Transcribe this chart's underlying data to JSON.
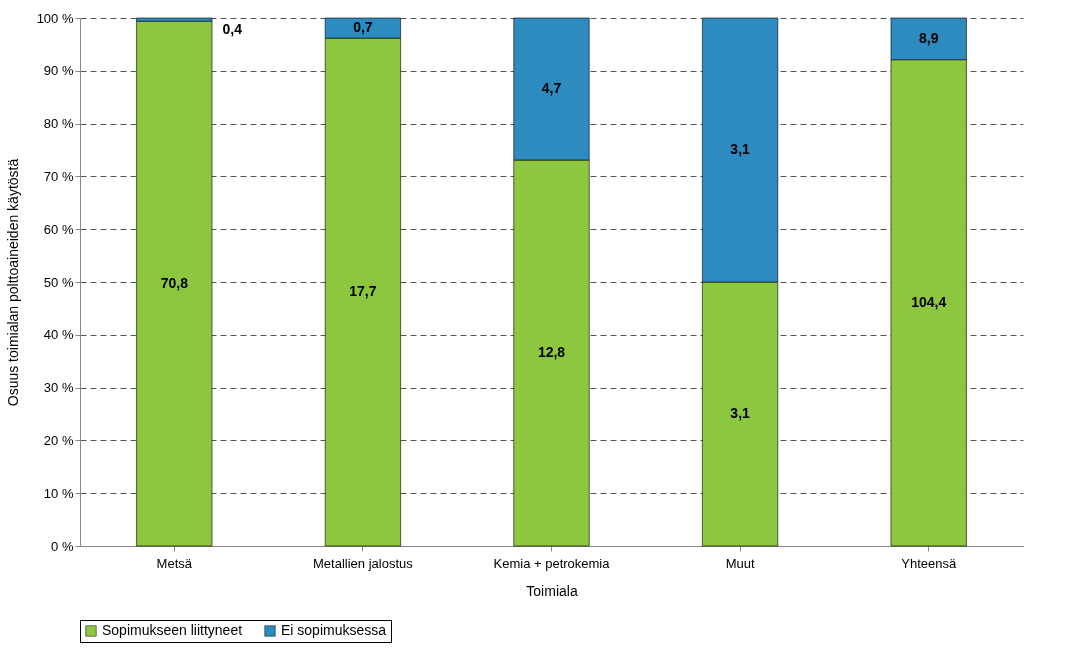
{
  "chart_data": {
    "type": "bar",
    "stacked": true,
    "xlabel": "Toimiala",
    "ylabel": "Osuus toimialan polttoaineiden käytöstä",
    "categories": [
      "Metsä",
      "Metallien jalostus",
      "Kemia + petrokemia",
      "Muut",
      "Yhteensä"
    ],
    "series": [
      {
        "name": "Sopimukseen liittyneet",
        "color": "#8dc63f",
        "values": [
          99.4,
          96.2,
          73.1,
          50,
          92.1
        ]
      },
      {
        "name": "Ei sopimuksessa",
        "color": "#2e8bc0",
        "values": [
          0.6,
          3.8,
          26.9,
          50,
          7.9
        ]
      }
    ],
    "annotations": [
      "70,8",
      "17,7",
      "12,8",
      "3,1",
      "104,4",
      "0,4",
      "0,7",
      "4,7",
      "3,1",
      "8,9"
    ],
    "ylim": [
      0,
      100
    ],
    "yticks": [
      {
        "value": 0,
        "label": "0 %"
      },
      {
        "value": 10,
        "label": "10 %"
      },
      {
        "value": 20,
        "label": "20 %"
      },
      {
        "value": 30,
        "label": "30 %"
      },
      {
        "value": 40,
        "label": "40 %"
      },
      {
        "value": 50,
        "label": "50 %"
      },
      {
        "value": 60,
        "label": "60 %"
      },
      {
        "value": 70,
        "label": "70 %"
      },
      {
        "value": 80,
        "label": "80 %"
      },
      {
        "value": 90,
        "label": "90 %"
      },
      {
        "value": 100,
        "label": "100 %"
      }
    ],
    "grid": "y",
    "legend": "bottom"
  }
}
